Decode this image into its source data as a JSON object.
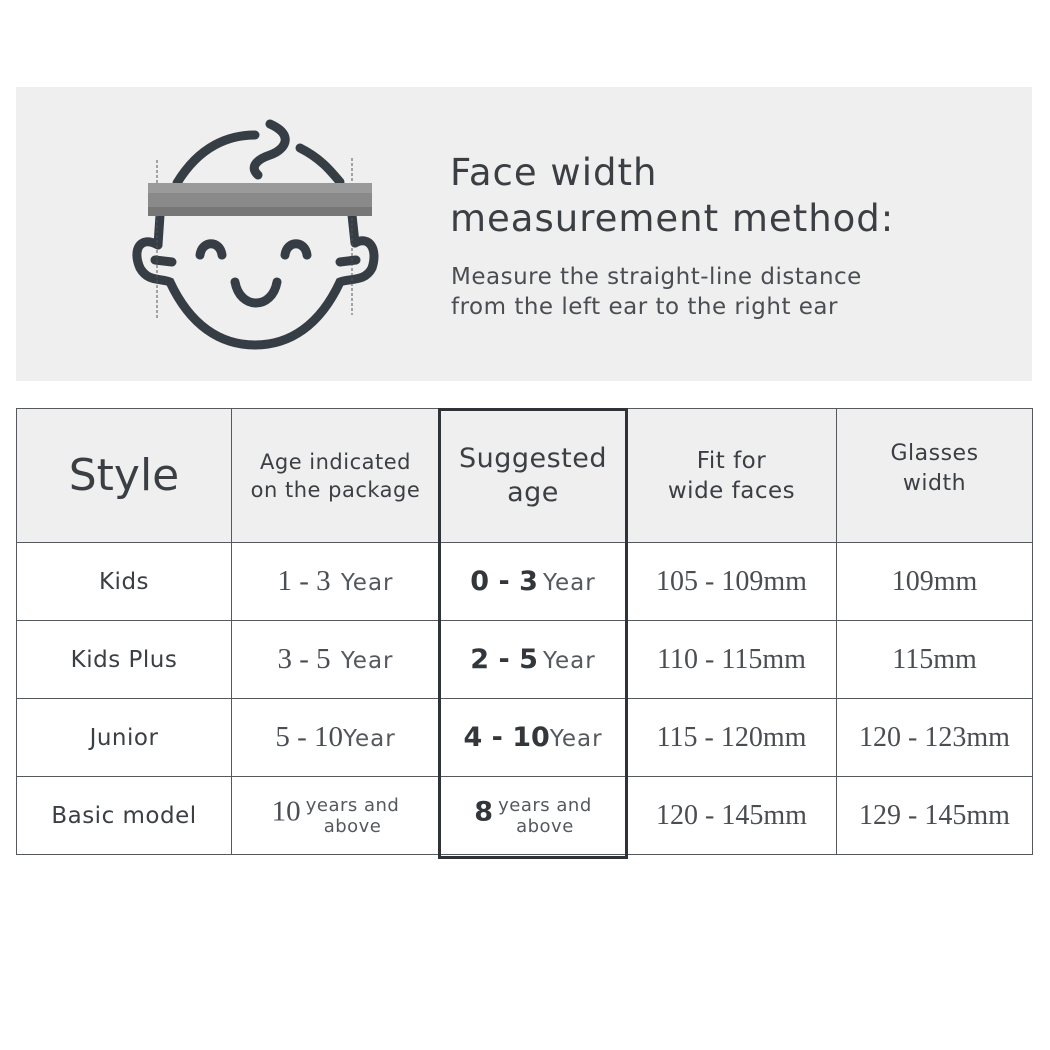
{
  "banner": {
    "icon": "child-face-measure-icon",
    "title_line1": "Face width",
    "title_line2": "measurement method:",
    "desc_line1": "Measure the straight-line distance",
    "desc_line2": "from the left ear to the right ear"
  },
  "table": {
    "headers": {
      "style": "Style",
      "age_pkg_1": "Age indicated",
      "age_pkg_2": "on the package",
      "sug_1": "Suggested",
      "sug_2": "age",
      "fit_1": "Fit for",
      "fit_2": "wide faces",
      "width_1": "Glasses",
      "width_2": "width"
    },
    "rows": [
      {
        "style": "Kids",
        "pkg_num": "1 - 3",
        "pkg_unit": "Year",
        "sug_num": "0 - 3",
        "sug_unit": "Year",
        "fit": "105 - 109mm",
        "width": "109mm"
      },
      {
        "style": "Kids Plus",
        "pkg_num": "3 - 5",
        "pkg_unit": "Year",
        "sug_num": "2 - 5",
        "sug_unit": "Year",
        "fit": "110 - 115mm",
        "width": "115mm"
      },
      {
        "style": "Junior",
        "pkg_num": "5 - 10",
        "pkg_unit": "Year",
        "sug_num": "4 - 10",
        "sug_unit": "Year",
        "fit": "115 - 120mm",
        "width": "120 - 123mm"
      },
      {
        "style": "Basic model",
        "pkg_num": "10",
        "pkg_unit_1": "years and",
        "pkg_unit_2": "above",
        "sug_num": "8",
        "sug_unit_1": "years and",
        "sug_unit_2": "above",
        "fit": "120 - 145mm",
        "width": "129 - 145mm"
      }
    ],
    "highlight_color": "#2f3337"
  }
}
